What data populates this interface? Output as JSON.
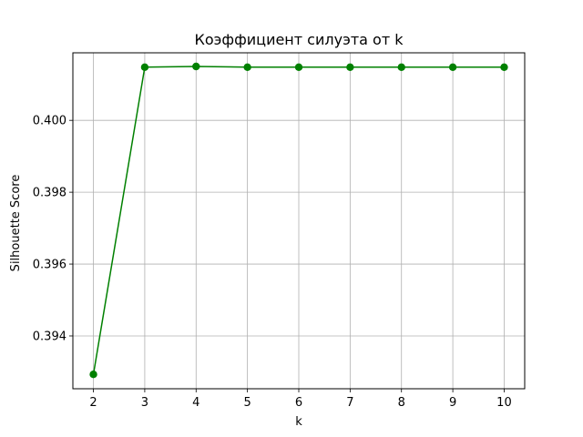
{
  "chart_data": {
    "type": "line",
    "title": "Коэффициент силуэта от k",
    "xlabel": "k",
    "ylabel": "Silhouette Score",
    "x": [
      2,
      3,
      4,
      5,
      6,
      7,
      8,
      9,
      10
    ],
    "series": [
      {
        "values": [
          0.39293,
          0.40148,
          0.4015,
          0.40148,
          0.40148,
          0.40148,
          0.40148,
          0.40148,
          0.40148
        ],
        "color": "#008000",
        "marker": "circle"
      }
    ],
    "xlim": [
      1.6,
      10.4
    ],
    "ylim": [
      0.39253,
      0.40188
    ],
    "xticks": [
      "2",
      "3",
      "4",
      "5",
      "6",
      "7",
      "8",
      "9",
      "10"
    ],
    "yticks": [
      "0.394",
      "0.396",
      "0.398",
      "0.400"
    ],
    "grid": true,
    "colors": {
      "axes": "#000000",
      "grid": "#b0b0b0"
    }
  }
}
